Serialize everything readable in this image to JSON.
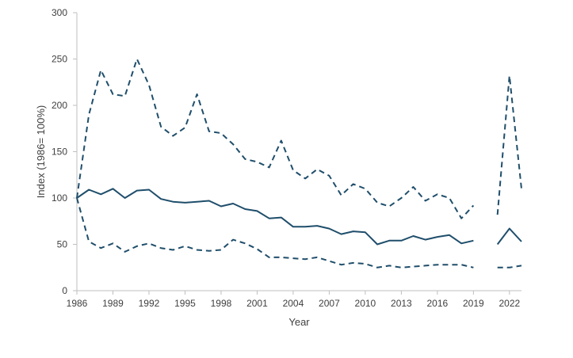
{
  "chart_data": {
    "type": "line",
    "title": "",
    "xlabel": "Year",
    "ylabel": "Index (1986= 100%)",
    "xlim": [
      1986,
      2023
    ],
    "ylim": [
      0,
      300
    ],
    "x_ticks": [
      "1986",
      "1989",
      "1992",
      "1995",
      "1998",
      "2001",
      "2004",
      "2007",
      "2010",
      "2013",
      "2016",
      "2019",
      "2022"
    ],
    "y_ticks": [
      "0",
      "50",
      "100",
      "150",
      "200",
      "250",
      "300"
    ],
    "grid": false,
    "legend": "none",
    "line_color": "#1f4e6b",
    "series": [
      {
        "style": "dashed",
        "x": [
          1986,
          1987,
          1988,
          1989,
          1990,
          1991,
          1992,
          1993,
          1994,
          1995,
          1996,
          1997,
          1998,
          1999,
          2000,
          2001,
          2002,
          2003,
          2004,
          2005,
          2006,
          2007,
          2008,
          2009,
          2010,
          2011,
          2012,
          2013,
          2014,
          2015,
          2016,
          2017,
          2018,
          2019,
          2020,
          2021,
          2022,
          2023
        ],
        "y": [
          100,
          190,
          238,
          212,
          210,
          250,
          222,
          177,
          167,
          176,
          212,
          172,
          170,
          158,
          142,
          139,
          133,
          162,
          130,
          121,
          131,
          124,
          103,
          115,
          110,
          95,
          91,
          100,
          112,
          97,
          104,
          100,
          78,
          92,
          null,
          82,
          232,
          110
        ]
      },
      {
        "style": "solid",
        "x": [
          1986,
          1987,
          1988,
          1989,
          1990,
          1991,
          1992,
          1993,
          1994,
          1995,
          1996,
          1997,
          1998,
          1999,
          2000,
          2001,
          2002,
          2003,
          2004,
          2005,
          2006,
          2007,
          2008,
          2009,
          2010,
          2011,
          2012,
          2013,
          2014,
          2015,
          2016,
          2017,
          2018,
          2019,
          2020,
          2021,
          2022,
          2023
        ],
        "y": [
          100,
          109,
          104,
          110,
          100,
          108,
          109,
          99,
          96,
          95,
          96,
          97,
          91,
          94,
          88,
          86,
          78,
          79,
          69,
          69,
          70,
          67,
          61,
          64,
          63,
          50,
          54,
          54,
          59,
          55,
          58,
          60,
          51,
          54,
          null,
          50,
          67,
          53
        ]
      },
      {
        "style": "dashed",
        "x": [
          1986,
          1987,
          1988,
          1989,
          1990,
          1991,
          1992,
          1993,
          1994,
          1995,
          1996,
          1997,
          1998,
          1999,
          2000,
          2001,
          2002,
          2003,
          2004,
          2005,
          2006,
          2007,
          2008,
          2009,
          2010,
          2011,
          2012,
          2013,
          2014,
          2015,
          2016,
          2017,
          2018,
          2019,
          2020,
          2021,
          2022,
          2023
        ],
        "y": [
          100,
          53,
          46,
          51,
          42,
          48,
          51,
          46,
          44,
          48,
          44,
          43,
          44,
          55,
          51,
          45,
          36,
          36,
          35,
          34,
          36,
          32,
          28,
          30,
          29,
          25,
          27,
          25,
          26,
          27,
          28,
          28,
          28,
          25,
          null,
          25,
          25,
          27
        ]
      }
    ]
  }
}
